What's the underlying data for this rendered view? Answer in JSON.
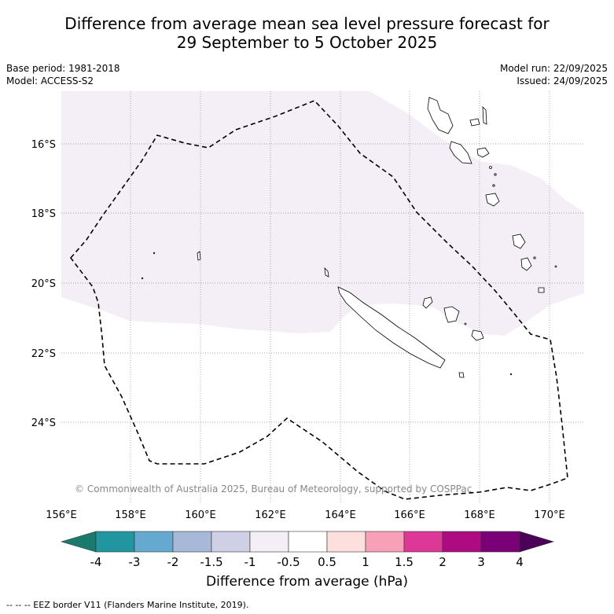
{
  "title": {
    "line1": "Difference from average mean sea level pressure forecast for",
    "line2": "29 September to 5 October 2025"
  },
  "meta": {
    "base_period": "Base period: 1981-2018",
    "model": "Model: ACCESS-S2",
    "model_run": "Model run: 22/09/2025",
    "issued": "Issued: 24/09/2025"
  },
  "map": {
    "lon_labels": [
      "156°E",
      "158°E",
      "160°E",
      "162°E",
      "164°E",
      "166°E",
      "168°E",
      "170°E"
    ],
    "lat_labels": [
      "16°S",
      "18°S",
      "20°S",
      "22°S",
      "24°S"
    ],
    "copyright": "© Commonwealth of Australia 2025, Bureau of Meteorology, supported by COSPPac",
    "shaded_anomaly_band": "-1 to -0.5"
  },
  "colorbar": {
    "tick_labels": [
      "-4",
      "-3",
      "-2",
      "-1.5",
      "-1",
      "-0.5",
      "0.5",
      "1",
      "1.5",
      "2",
      "3",
      "4"
    ],
    "colors": [
      "#1a7a6e",
      "#2196a0",
      "#66a9d0",
      "#a8b8d8",
      "#cfcfe6",
      "#f4eef6",
      "#ffffff",
      "#fde0de",
      "#f8a0b8",
      "#dd3898",
      "#ae0a82",
      "#7b0078",
      "#4b005a"
    ],
    "label": "Difference from average (hPa)"
  },
  "footnote": "--  --  -- EEZ border V11 (Flanders Marine Institute, 2019)."
}
